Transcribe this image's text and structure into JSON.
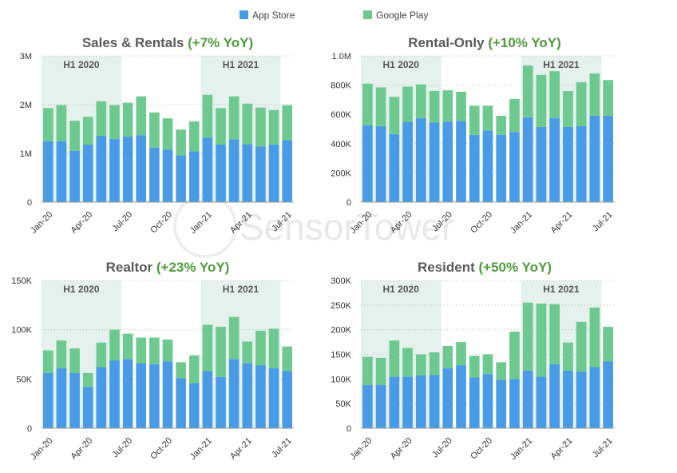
{
  "legend": [
    {
      "name": "App Store",
      "color": "#4a9be6"
    },
    {
      "name": "Google Play",
      "color": "#6dc98f"
    }
  ],
  "watermark": "SensorTower",
  "band_color": "#e4f1ec",
  "chart_data": [
    {
      "type": "bar",
      "stacked": true,
      "title_main": "Sales & Rentals",
      "title_yoy": "(+7% YoY)",
      "ylim": [
        0,
        3000000
      ],
      "yticks": [
        {
          "value": 0,
          "label": "0"
        },
        {
          "value": 1000000,
          "label": "1M"
        },
        {
          "value": 2000000,
          "label": "2M"
        },
        {
          "value": 3000000,
          "label": "3M"
        }
      ],
      "xticks": [
        {
          "index": 0,
          "label": "Jan-20"
        },
        {
          "index": 3,
          "label": "Apr-20"
        },
        {
          "index": 6,
          "label": "Jul-20"
        },
        {
          "index": 9,
          "label": "Oct-20"
        },
        {
          "index": 12,
          "label": "Jan-21"
        },
        {
          "index": 15,
          "label": "Apr-21"
        },
        {
          "index": 18,
          "label": "Jul-21"
        }
      ],
      "bands": [
        {
          "label": "H1 2020",
          "start": 0,
          "end": 5
        },
        {
          "label": "H1 2021",
          "start": 12,
          "end": 17
        }
      ],
      "categories": [
        "Jan-20",
        "Feb-20",
        "Mar-20",
        "Apr-20",
        "May-20",
        "Jun-20",
        "Jul-20",
        "Aug-20",
        "Sep-20",
        "Oct-20",
        "Nov-20",
        "Dec-20",
        "Jan-21",
        "Feb-21",
        "Mar-21",
        "Apr-21",
        "May-21",
        "Jun-21",
        "Jul-21"
      ],
      "series": [
        {
          "name": "App Store",
          "values": [
            1250000,
            1250000,
            1050000,
            1180000,
            1360000,
            1300000,
            1350000,
            1370000,
            1120000,
            1080000,
            960000,
            1040000,
            1320000,
            1180000,
            1290000,
            1190000,
            1140000,
            1180000,
            1270000
          ]
        },
        {
          "name": "Google Play",
          "values": [
            680000,
            740000,
            620000,
            570000,
            710000,
            690000,
            690000,
            800000,
            720000,
            640000,
            530000,
            620000,
            880000,
            750000,
            880000,
            830000,
            800000,
            710000,
            720000
          ]
        }
      ]
    },
    {
      "type": "bar",
      "stacked": true,
      "title_main": "Rental-Only",
      "title_yoy": "(+10% YoY)",
      "ylim": [
        0,
        1000000
      ],
      "yticks": [
        {
          "value": 0,
          "label": "0"
        },
        {
          "value": 200000,
          "label": "200K"
        },
        {
          "value": 400000,
          "label": "400K"
        },
        {
          "value": 600000,
          "label": "600K"
        },
        {
          "value": 800000,
          "label": "800K"
        },
        {
          "value": 1000000,
          "label": "1.0M"
        }
      ],
      "xticks": [
        {
          "index": 0,
          "label": "Jan-20"
        },
        {
          "index": 3,
          "label": "Apr-20"
        },
        {
          "index": 6,
          "label": "Jul-20"
        },
        {
          "index": 9,
          "label": "Oct-20"
        },
        {
          "index": 12,
          "label": "Jan-21"
        },
        {
          "index": 15,
          "label": "Apr-21"
        },
        {
          "index": 18,
          "label": "Jul-21"
        }
      ],
      "bands": [
        {
          "label": "H1 2020",
          "start": 0,
          "end": 5
        },
        {
          "label": "H1 2021",
          "start": 12,
          "end": 17
        }
      ],
      "categories": [
        "Jan-20",
        "Feb-20",
        "Mar-20",
        "Apr-20",
        "May-20",
        "Jun-20",
        "Jul-20",
        "Aug-20",
        "Sep-20",
        "Oct-20",
        "Nov-20",
        "Dec-20",
        "Jan-21",
        "Feb-21",
        "Mar-21",
        "Apr-21",
        "May-21",
        "Jun-21",
        "Jul-21"
      ],
      "series": [
        {
          "name": "App Store",
          "values": [
            525000,
            520000,
            465000,
            550000,
            575000,
            545000,
            550000,
            555000,
            460000,
            490000,
            460000,
            480000,
            580000,
            515000,
            575000,
            515000,
            520000,
            590000,
            590000
          ]
        },
        {
          "name": "Google Play",
          "values": [
            285000,
            265000,
            255000,
            240000,
            230000,
            215000,
            215000,
            200000,
            200000,
            170000,
            130000,
            225000,
            355000,
            355000,
            320000,
            245000,
            300000,
            290000,
            245000
          ]
        }
      ]
    },
    {
      "type": "bar",
      "stacked": true,
      "title_main": "Realtor",
      "title_yoy": "(+23% YoY)",
      "ylim": [
        0,
        150000
      ],
      "yticks": [
        {
          "value": 0,
          "label": "0"
        },
        {
          "value": 50000,
          "label": "50K"
        },
        {
          "value": 100000,
          "label": "100K"
        },
        {
          "value": 150000,
          "label": "150K"
        }
      ],
      "xticks": [
        {
          "index": 0,
          "label": "Jan-20"
        },
        {
          "index": 3,
          "label": "Apr-20"
        },
        {
          "index": 6,
          "label": "Jul-20"
        },
        {
          "index": 9,
          "label": "Oct-20"
        },
        {
          "index": 12,
          "label": "Jan-21"
        },
        {
          "index": 15,
          "label": "Apr-21"
        },
        {
          "index": 18,
          "label": "Jul-21"
        }
      ],
      "bands": [
        {
          "label": "H1 2020",
          "start": 0,
          "end": 5
        },
        {
          "label": "H1 2021",
          "start": 12,
          "end": 17
        }
      ],
      "categories": [
        "Jan-20",
        "Feb-20",
        "Mar-20",
        "Apr-20",
        "May-20",
        "Jun-20",
        "Jul-20",
        "Aug-20",
        "Sep-20",
        "Oct-20",
        "Nov-20",
        "Dec-20",
        "Jan-21",
        "Feb-21",
        "Mar-21",
        "Apr-21",
        "May-21",
        "Jun-21",
        "Jul-21"
      ],
      "series": [
        {
          "name": "App Store",
          "values": [
            56000,
            61000,
            56000,
            42000,
            62000,
            69000,
            70000,
            66000,
            65000,
            68000,
            51000,
            46000,
            58000,
            52000,
            70000,
            66000,
            64000,
            61000,
            58000
          ]
        },
        {
          "name": "Google Play",
          "values": [
            23000,
            28000,
            25000,
            14000,
            25000,
            31000,
            26000,
            26000,
            27000,
            22000,
            16000,
            28000,
            47000,
            51000,
            43000,
            22000,
            35000,
            40000,
            25000
          ]
        }
      ]
    },
    {
      "type": "bar",
      "stacked": true,
      "title_main": "Resident",
      "title_yoy": "(+50% YoY)",
      "ylim": [
        0,
        300000
      ],
      "yticks": [
        {
          "value": 0,
          "label": "0"
        },
        {
          "value": 50000,
          "label": "50K"
        },
        {
          "value": 100000,
          "label": "100K"
        },
        {
          "value": 150000,
          "label": "150K"
        },
        {
          "value": 200000,
          "label": "200K"
        },
        {
          "value": 250000,
          "label": "250K"
        },
        {
          "value": 300000,
          "label": "300K"
        }
      ],
      "xticks": [
        {
          "index": 0,
          "label": "Jan-20"
        },
        {
          "index": 3,
          "label": "Apr-20"
        },
        {
          "index": 6,
          "label": "Jul-20"
        },
        {
          "index": 9,
          "label": "Oct-20"
        },
        {
          "index": 12,
          "label": "Jan-21"
        },
        {
          "index": 15,
          "label": "Apr-21"
        },
        {
          "index": 18,
          "label": "Jul-21"
        }
      ],
      "bands": [
        {
          "label": "H1 2020",
          "start": 0,
          "end": 5
        },
        {
          "label": "H1 2021",
          "start": 12,
          "end": 17
        }
      ],
      "categories": [
        "Jan-20",
        "Feb-20",
        "Mar-20",
        "Apr-20",
        "May-20",
        "Jun-20",
        "Jul-20",
        "Aug-20",
        "Sep-20",
        "Oct-20",
        "Nov-20",
        "Dec-20",
        "Jan-21",
        "Feb-21",
        "Mar-21",
        "Apr-21",
        "May-21",
        "Jun-21",
        "Jul-21"
      ],
      "series": [
        {
          "name": "App Store",
          "values": [
            88000,
            88000,
            105000,
            105000,
            107000,
            108000,
            122000,
            128000,
            103000,
            110000,
            98000,
            100000,
            117000,
            105000,
            130000,
            117000,
            115000,
            124000,
            136000
          ]
        },
        {
          "name": "Google Play",
          "values": [
            57000,
            55000,
            73000,
            58000,
            43000,
            46000,
            45000,
            47000,
            44000,
            40000,
            36000,
            96000,
            138000,
            148000,
            122000,
            57000,
            101000,
            121000,
            70000
          ]
        }
      ]
    }
  ]
}
